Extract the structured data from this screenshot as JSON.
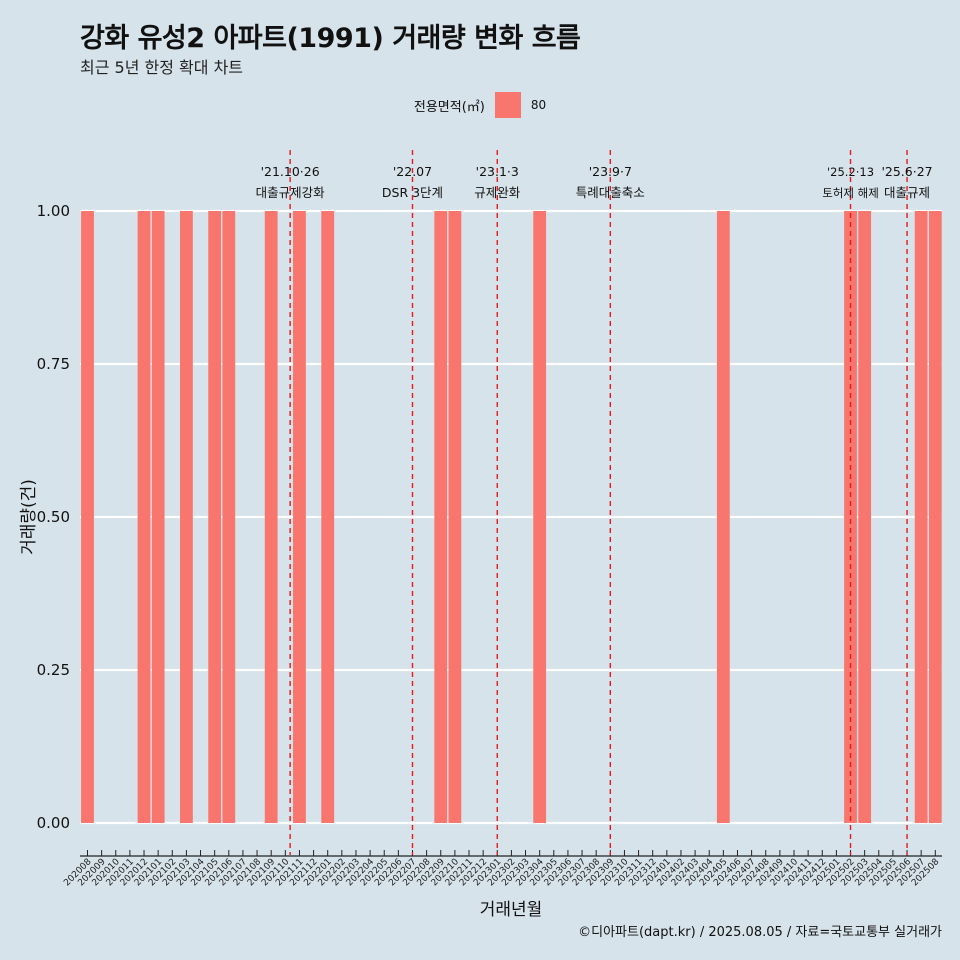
{
  "title": "강화 유성2 아파트(1991) 거래량 변화 흐름",
  "subtitle": "최근 5년 한정 확대 차트",
  "legend": {
    "title": "전용면적(㎡)",
    "label": "80",
    "color": "#f8766d"
  },
  "caption": "©디아파트(dapt.kr) / 2025.08.05 / 자료=국토교통부 실거래가",
  "chart_data": {
    "type": "bar",
    "xlabel": "거래년월",
    "ylabel": "거래량(건)",
    "ylim": [
      0,
      1
    ],
    "yticks": [
      "0.00",
      "0.25",
      "0.50",
      "0.75",
      "1.00"
    ],
    "grid": true,
    "categories": [
      "202008",
      "202009",
      "202010",
      "202011",
      "202012",
      "202101",
      "202102",
      "202103",
      "202104",
      "202105",
      "202106",
      "202107",
      "202108",
      "202109",
      "202110",
      "202111",
      "202112",
      "202201",
      "202202",
      "202203",
      "202204",
      "202205",
      "202206",
      "202207",
      "202208",
      "202209",
      "202210",
      "202211",
      "202212",
      "202301",
      "202302",
      "202303",
      "202304",
      "202305",
      "202306",
      "202307",
      "202308",
      "202309",
      "202310",
      "202311",
      "202312",
      "202401",
      "202402",
      "202403",
      "202404",
      "202405",
      "202406",
      "202407",
      "202408",
      "202409",
      "202410",
      "202411",
      "202412",
      "202501",
      "202502",
      "202503",
      "202504",
      "202505",
      "202506",
      "202507",
      "202508"
    ],
    "series": [
      {
        "name": "80",
        "color": "#f8766d",
        "values": [
          1,
          0,
          0,
          0,
          1,
          1,
          0,
          1,
          0,
          1,
          1,
          0,
          0,
          1,
          0,
          1,
          0,
          1,
          0,
          0,
          0,
          0,
          0,
          0,
          0,
          1,
          1,
          0,
          0,
          0,
          0,
          0,
          1,
          0,
          0,
          0,
          0,
          0,
          0,
          0,
          0,
          0,
          0,
          0,
          0,
          1,
          0,
          0,
          0,
          0,
          0,
          0,
          0,
          0,
          1,
          1,
          0,
          0,
          0,
          1,
          1
        ]
      }
    ],
    "annotations": [
      {
        "x": "202110",
        "offset": 0.34,
        "date": "'21.10·26",
        "label": "대출규제강화",
        "small": false
      },
      {
        "x": "202207",
        "offset": 0.0,
        "date": "'22.07",
        "label": "DSR 3단계",
        "small": false
      },
      {
        "x": "202301",
        "offset": 0.0,
        "date": "'23.1·3",
        "label": "규제완화",
        "small": false
      },
      {
        "x": "202309",
        "offset": 0.0,
        "date": "'23.9·7",
        "label": "특례대출축소",
        "small": false
      },
      {
        "x": "202502",
        "offset": 0.0,
        "date": "'25.2·13",
        "label": "토허제 해제",
        "small": true
      },
      {
        "x": "202506",
        "offset": 0.0,
        "date": "'25.6·27",
        "label": "대출규제",
        "small": false
      }
    ]
  }
}
